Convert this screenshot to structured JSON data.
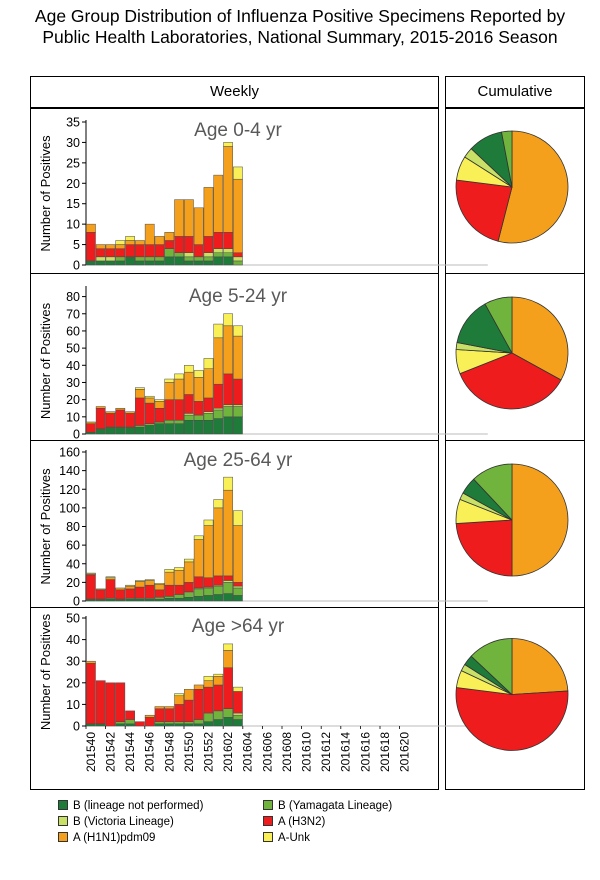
{
  "title_line1": "Age Group Distribution of Influenza Positive Specimens Reported by",
  "title_line2": "Public Health Laboratories, National Summary, 2015-2016 Season",
  "headers": {
    "weekly": "Weekly",
    "cumulative": "Cumulative"
  },
  "colors": {
    "b_lineage_not_performed": "#1e7b3a",
    "b_yamagata": "#70b43e",
    "b_victoria": "#c8e066",
    "a_h3n2": "#ee1c1c",
    "a_h1n1pdm09": "#f4a01c",
    "a_unk": "#f8f056"
  },
  "chart_data": {
    "type": "bar",
    "stacked": true,
    "ylabel": "Number of Positives",
    "x_tick_labels": [
      "201540",
      "201542",
      "201544",
      "201546",
      "201548",
      "201550",
      "201552",
      "201602",
      "201604",
      "201606",
      "201608",
      "201610",
      "201612",
      "201614",
      "201616",
      "201618",
      "201620"
    ],
    "weeks": [
      "201540",
      "201541",
      "201542",
      "201543",
      "201544",
      "201545",
      "201546",
      "201547",
      "201548",
      "201549",
      "201550",
      "201551",
      "201552",
      "201601",
      "201602",
      "201603"
    ],
    "series_names": [
      "B (lineage not performed)",
      "B (Yamagata Lineage)",
      "B (Victoria Lineage)",
      "A (H3N2)",
      "A (H1N1)pdm09",
      "A-Unk"
    ],
    "panels": [
      {
        "label": "Age 0-4 yr",
        "yticks": [
          0,
          5,
          10,
          15,
          20,
          25,
          30,
          35
        ],
        "ylim": [
          0,
          35
        ],
        "series": [
          {
            "name": "B (lineage not performed)",
            "values": [
              1,
              1,
              1,
              1,
              2,
              1,
              1,
              1,
              2,
              2,
              1,
              1,
              1,
              2,
              2,
              0
            ]
          },
          {
            "name": "B (Yamagata Lineage)",
            "values": [
              0,
              0,
              0,
              1,
              0,
              1,
              1,
              1,
              2,
              1,
              1,
              1,
              1,
              1,
              1,
              1
            ]
          },
          {
            "name": "B (Victoria Lineage)",
            "values": [
              0,
              1,
              1,
              0,
              0,
              0,
              0,
              0,
              0,
              0,
              1,
              0,
              1,
              1,
              1,
              1
            ]
          },
          {
            "name": "A (H3N2)",
            "values": [
              7,
              2,
              2,
              2,
              3,
              3,
              3,
              3,
              2,
              4,
              4,
              3,
              4,
              4,
              4,
              1
            ]
          },
          {
            "name": "A (H1N1)pdm09",
            "values": [
              2,
              1,
              1,
              1,
              1,
              1,
              5,
              2,
              2,
              9,
              9,
              9,
              12,
              14,
              21,
              18
            ]
          },
          {
            "name": "A-Unk",
            "values": [
              0,
              0,
              0,
              1,
              1,
              0,
              0,
              0,
              0,
              0,
              0,
              0,
              0,
              0,
              1,
              3
            ]
          }
        ],
        "pie": [
          {
            "name": "A (H1N1)pdm09",
            "value": 54
          },
          {
            "name": "A (H3N2)",
            "value": 23
          },
          {
            "name": "A-Unk",
            "value": 7
          },
          {
            "name": "B (Victoria Lineage)",
            "value": 3
          },
          {
            "name": "B (lineage not performed)",
            "value": 10
          },
          {
            "name": "B (Yamagata Lineage)",
            "value": 3
          }
        ]
      },
      {
        "label": "Age 5-24 yr",
        "yticks": [
          0,
          10,
          20,
          30,
          40,
          50,
          60,
          70,
          80
        ],
        "ylim": [
          0,
          85
        ],
        "series": [
          {
            "name": "B (lineage not performed)",
            "values": [
              1,
              3,
              4,
              4,
              4,
              4,
              5,
              6,
              6,
              6,
              8,
              8,
              8,
              9,
              10,
              10
            ]
          },
          {
            "name": "B (Yamagata Lineage)",
            "values": [
              0,
              0,
              0,
              0,
              0,
              1,
              1,
              1,
              2,
              2,
              3,
              3,
              4,
              5,
              6,
              6
            ]
          },
          {
            "name": "B (Victoria Lineage)",
            "values": [
              0,
              0,
              0,
              0,
              0,
              0,
              0,
              0,
              0,
              0,
              1,
              0,
              1,
              1,
              1,
              1
            ]
          },
          {
            "name": "A (H3N2)",
            "values": [
              5,
              12,
              8,
              10,
              8,
              16,
              12,
              8,
              12,
              12,
              11,
              8,
              8,
              14,
              18,
              15
            ]
          },
          {
            "name": "A (H1N1)pdm09",
            "values": [
              1,
              1,
              1,
              1,
              1,
              5,
              3,
              4,
              10,
              12,
              13,
              14,
              17,
              27,
              28,
              25
            ]
          },
          {
            "name": "A-Unk",
            "values": [
              0,
              0,
              0,
              0,
              0,
              1,
              1,
              1,
              2,
              3,
              4,
              4,
              6,
              8,
              7,
              6
            ]
          }
        ],
        "pie": [
          {
            "name": "A (H1N1)pdm09",
            "value": 33
          },
          {
            "name": "A (H3N2)",
            "value": 36
          },
          {
            "name": "A-Unk",
            "value": 7
          },
          {
            "name": "B (Victoria Lineage)",
            "value": 2
          },
          {
            "name": "B (lineage not performed)",
            "value": 14
          },
          {
            "name": "B (Yamagata Lineage)",
            "value": 8
          }
        ]
      },
      {
        "label": "Age 25-64 yr",
        "yticks": [
          0,
          20,
          40,
          60,
          80,
          100,
          120,
          140,
          160
        ],
        "ylim": [
          0,
          160
        ],
        "series": [
          {
            "name": "B (lineage not performed)",
            "values": [
              2,
              2,
              2,
              2,
              2,
              2,
              2,
              2,
              3,
              3,
              4,
              5,
              6,
              7,
              8,
              6
            ]
          },
          {
            "name": "B (Yamagata Lineage)",
            "values": [
              0,
              0,
              1,
              0,
              1,
              1,
              1,
              2,
              2,
              4,
              5,
              8,
              8,
              9,
              12,
              8
            ]
          },
          {
            "name": "B (Victoria Lineage)",
            "values": [
              0,
              0,
              0,
              0,
              0,
              0,
              0,
              0,
              0,
              0,
              1,
              1,
              1,
              1,
              2,
              2
            ]
          },
          {
            "name": "A (H3N2)",
            "values": [
              26,
              10,
              20,
              10,
              10,
              12,
              14,
              8,
              12,
              10,
              10,
              12,
              10,
              10,
              5,
              4
            ]
          },
          {
            "name": "A (H1N1)pdm09",
            "values": [
              1,
              1,
              2,
              2,
              3,
              6,
              5,
              6,
              14,
              16,
              22,
              40,
              56,
              73,
              92,
              61
            ]
          },
          {
            "name": "A-Unk",
            "values": [
              1,
              0,
              1,
              0,
              1,
              1,
              1,
              1,
              3,
              3,
              3,
              4,
              6,
              9,
              14,
              16
            ]
          }
        ],
        "pie": [
          {
            "name": "A (H1N1)pdm09",
            "value": 50
          },
          {
            "name": "A (H3N2)",
            "value": 24
          },
          {
            "name": "A-Unk",
            "value": 7
          },
          {
            "name": "B (Victoria Lineage)",
            "value": 2
          },
          {
            "name": "B (lineage not performed)",
            "value": 5
          },
          {
            "name": "B (Yamagata Lineage)",
            "value": 12
          }
        ]
      },
      {
        "label": "Age >64 yr",
        "yticks": [
          0,
          10,
          20,
          30,
          40,
          50
        ],
        "ylim": [
          0,
          50
        ],
        "series": [
          {
            "name": "B (lineage not performed)",
            "values": [
              1,
              1,
              0,
              1,
              1,
              0,
              0,
              1,
              1,
              1,
              1,
              1,
              2,
              3,
              4,
              3
            ]
          },
          {
            "name": "B (Yamagata Lineage)",
            "values": [
              0,
              0,
              0,
              1,
              2,
              0,
              0,
              1,
              1,
              1,
              1,
              2,
              4,
              4,
              4,
              2
            ]
          },
          {
            "name": "B (Victoria Lineage)",
            "values": [
              0,
              0,
              0,
              0,
              0,
              0,
              0,
              0,
              0,
              0,
              0,
              0,
              0,
              0,
              0,
              1
            ]
          },
          {
            "name": "A (H3N2)",
            "values": [
              28,
              20,
              20,
              18,
              4,
              2,
              4,
              6,
              6,
              8,
              10,
              14,
              12,
              12,
              19,
              10
            ]
          },
          {
            "name": "A (H1N1)pdm09",
            "values": [
              1,
              0,
              0,
              0,
              0,
              0,
              1,
              1,
              1,
              4,
              5,
              2,
              3,
              4,
              8,
              0
            ]
          },
          {
            "name": "A-Unk",
            "values": [
              0,
              0,
              0,
              0,
              0,
              0,
              0,
              0,
              0,
              1,
              0,
              0,
              2,
              1,
              3,
              2
            ]
          }
        ],
        "pie": [
          {
            "name": "A (H1N1)pdm09",
            "value": 24
          },
          {
            "name": "A (H3N2)",
            "value": 53
          },
          {
            "name": "A-Unk",
            "value": 5
          },
          {
            "name": "B (Victoria Lineage)",
            "value": 2
          },
          {
            "name": "B (lineage not performed)",
            "value": 3
          },
          {
            "name": "B (Yamagata Lineage)",
            "value": 13
          }
        ]
      }
    ]
  },
  "legend": [
    {
      "label": "B (lineage not performed)",
      "color": "#1e7b3a"
    },
    {
      "label": "B (Yamagata Lineage)",
      "color": "#70b43e"
    },
    {
      "label": "B (Victoria Lineage)",
      "color": "#c8e066"
    },
    {
      "label": "A (H3N2)",
      "color": "#ee1c1c"
    },
    {
      "label": "A (H1N1)pdm09",
      "color": "#f4a01c"
    },
    {
      "label": "A-Unk",
      "color": "#f8f056"
    }
  ]
}
